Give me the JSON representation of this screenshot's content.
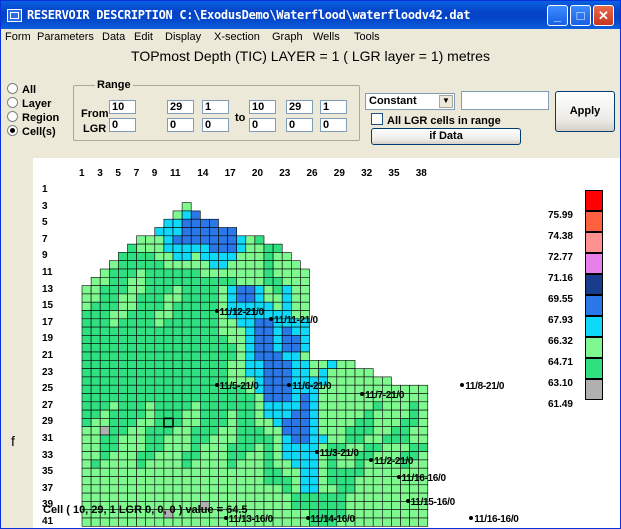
{
  "window": {
    "title": "RESERVOIR DESCRIPTION C:\\ExodusDemo\\Waterflood\\waterfloodv42.dat"
  },
  "menu": [
    "Form",
    "Parameters",
    "Data",
    "Edit",
    "Display",
    "X-section",
    "Graph",
    "Wells",
    "Tools"
  ],
  "heading": "TOPmost Depth (TIC) LAYER = 1 ( LGR layer = 1)  metres",
  "selection": {
    "options": [
      {
        "label": "All",
        "selected": false
      },
      {
        "label": "Layer",
        "selected": false
      },
      {
        "label": "Region",
        "selected": false
      },
      {
        "label": "Cell(s)",
        "selected": true
      }
    ],
    "range_label": "Range",
    "from_label": "From",
    "lgr_label": "LGR",
    "to_label": "to",
    "from": [
      "10",
      "29",
      "1"
    ],
    "to": [
      "10",
      "29",
      "1"
    ],
    "from_lgr": [
      "0",
      "0",
      "0"
    ],
    "to_lgr": [
      "0",
      "0",
      "0"
    ]
  },
  "controls": {
    "mode": "Constant",
    "value": "",
    "all_lgr_label": "All LGR cells in range",
    "if_data_label": "if Data",
    "apply_label": "Apply"
  },
  "grid": {
    "x_ticks": [
      "1",
      "3",
      "5",
      "7",
      "9",
      "11",
      "14",
      "17",
      "20",
      "23",
      "26",
      "29",
      "32",
      "35",
      "38"
    ],
    "y_ticks": [
      "1",
      "3",
      "5",
      "7",
      "9",
      "11",
      "13",
      "15",
      "17",
      "19",
      "21",
      "23",
      "25",
      "27",
      "29",
      "31",
      "33",
      "35",
      "37",
      "39",
      "41"
    ]
  },
  "legend": [
    {
      "value": "75.99",
      "color": "#ff0000"
    },
    {
      "value": "74.38",
      "color": "#ff6040"
    },
    {
      "value": "72.77",
      "color": "#ff9090"
    },
    {
      "value": "71.16",
      "color": "#e87ee8"
    },
    {
      "value": "69.55",
      "color": "#1a3c8c"
    },
    {
      "value": "67.93",
      "color": "#2a78e8"
    },
    {
      "value": "66.32",
      "color": "#10d8f8"
    },
    {
      "value": "64.71",
      "color": "#80f890"
    },
    {
      "value": "63.10",
      "color": "#30e080"
    },
    {
      "value": "61.49",
      "color": "#b0b0b0"
    }
  ],
  "wells": [
    "11/12-21/0",
    "11/11-21/0",
    "11/5-21/0",
    "11/6-21/0",
    "11/7-21/0",
    "11/8-21/0",
    "11/3-21/0",
    "11/2-21/0",
    "11/16-16/0",
    "11/15-16/0",
    "11/13-16/0",
    "11/14-16/0",
    "11/16-16/0"
  ],
  "status": "Cell ( 10, 29, 1 LGR 0, 0, 0 ) value = 64.5",
  "outside_marks": [
    "f"
  ]
}
